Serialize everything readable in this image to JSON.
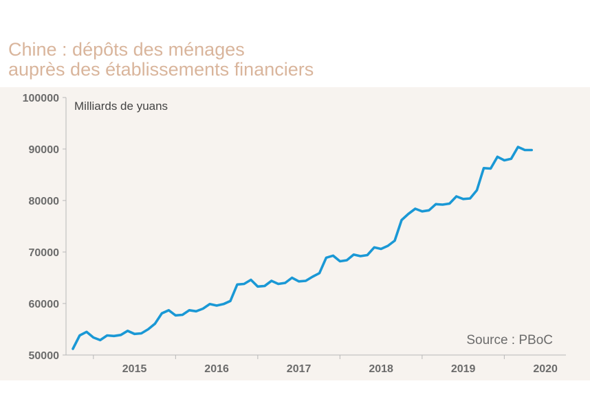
{
  "title_line1": "Chine : dépôts des ménages",
  "title_line2": "auprès des établissements financiers",
  "colors": {
    "title": "#d9b59c",
    "panel": "#f7f3ef",
    "series": "#1a98d5",
    "axis": "#b7b7b7"
  },
  "chart_data": {
    "type": "line",
    "ylabel": "Milliards de yuans",
    "source": "Source :  PBoC",
    "ylim": [
      50000,
      100000
    ],
    "yticks": [
      100000,
      90000,
      80000,
      70000,
      60000,
      50000
    ],
    "ytick_labels": [
      "100000",
      "90000",
      "80000",
      "70000",
      "60000",
      "50000"
    ],
    "xlim": [
      "2014-09",
      "2020-10"
    ],
    "xticks": [
      "2015",
      "2016",
      "2017",
      "2018",
      "2019",
      "2020"
    ],
    "grid": false,
    "x": [
      "2014-10",
      "2014-11",
      "2014-12",
      "2015-01",
      "2015-02",
      "2015-03",
      "2015-04",
      "2015-05",
      "2015-06",
      "2015-07",
      "2015-08",
      "2015-09",
      "2015-10",
      "2015-11",
      "2015-12",
      "2016-01",
      "2016-02",
      "2016-03",
      "2016-04",
      "2016-05",
      "2016-06",
      "2016-07",
      "2016-08",
      "2016-09",
      "2016-10",
      "2016-11",
      "2016-12",
      "2017-01",
      "2017-02",
      "2017-03",
      "2017-04",
      "2017-05",
      "2017-06",
      "2017-07",
      "2017-08",
      "2017-09",
      "2017-10",
      "2017-11",
      "2017-12",
      "2018-01",
      "2018-02",
      "2018-03",
      "2018-04",
      "2018-05",
      "2018-06",
      "2018-07",
      "2018-08",
      "2018-09",
      "2018-10",
      "2018-11",
      "2018-12",
      "2019-01",
      "2019-02",
      "2019-03",
      "2019-04",
      "2019-05",
      "2019-06",
      "2019-07",
      "2019-08",
      "2019-09",
      "2019-10",
      "2019-11",
      "2019-12",
      "2020-01",
      "2020-02",
      "2020-03",
      "2020-04",
      "2020-05"
    ],
    "series": [
      {
        "values": [
          51200,
          53800,
          54500,
          53400,
          52900,
          53800,
          53700,
          53900,
          54700,
          54100,
          54200,
          55000,
          56100,
          58100,
          58700,
          57700,
          57800,
          58700,
          58500,
          59000,
          59900,
          59600,
          59900,
          60500,
          63700,
          63800,
          64600,
          63300,
          63400,
          64400,
          63800,
          64000,
          65000,
          64300,
          64400,
          65200,
          65900,
          68900,
          69300,
          68200,
          68400,
          69500,
          69200,
          69400,
          70900,
          70600,
          71200,
          72200,
          76200,
          77400,
          78400,
          77900,
          78100,
          79300,
          79200,
          79400,
          80800,
          80300,
          80400,
          82000,
          86300,
          86200,
          88500,
          87800,
          88100,
          90400,
          89800,
          89800
        ]
      }
    ]
  }
}
